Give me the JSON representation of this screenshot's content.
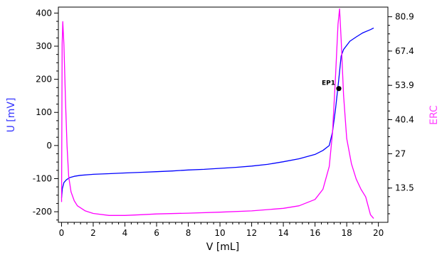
{
  "chart_data": {
    "type": "line",
    "xlabel": "V [mL]",
    "ylabel": "U [mV]",
    "y2label": "ERC",
    "xlim": [
      -0.2,
      20.6
    ],
    "ylim": [
      -232,
      418
    ],
    "y2lim": [
      0,
      84.7
    ],
    "x_ticks": [
      0,
      2,
      4,
      6,
      8,
      10,
      12,
      14,
      16,
      18,
      20
    ],
    "y_ticks": [
      -200,
      -100,
      0,
      100,
      200,
      300,
      400
    ],
    "y2_ticks": [
      "13.5",
      "27",
      "40.4",
      "53.9",
      "67.4",
      "80.9"
    ],
    "grid": false,
    "series": [
      {
        "name": "U [mV]",
        "axis": "left",
        "color": "#0000ff",
        "x": [
          0.0,
          0.05,
          0.15,
          0.3,
          0.5,
          0.8,
          1.2,
          2.0,
          3.0,
          4.0,
          5.0,
          6.0,
          7.0,
          8.0,
          9.0,
          10.0,
          11.0,
          12.0,
          13.0,
          14.0,
          15.0,
          16.0,
          16.5,
          16.9,
          17.1,
          17.3,
          17.5,
          17.65,
          17.8,
          18.2,
          18.6,
          19.0,
          19.5,
          19.7
        ],
        "y": [
          -158,
          -130,
          -112,
          -104,
          -97,
          -93,
          -90,
          -87,
          -85,
          -83,
          -81,
          -79,
          -77,
          -74,
          -72,
          -69,
          -66,
          -62,
          -57,
          -49,
          -40,
          -27,
          -15,
          0,
          40,
          112,
          200,
          270,
          290,
          315,
          328,
          340,
          350,
          355
        ]
      },
      {
        "name": "ERC",
        "axis": "right",
        "color": "#ff00ff",
        "x": [
          0.0,
          0.04,
          0.08,
          0.15,
          0.25,
          0.35,
          0.45,
          0.6,
          0.8,
          1.0,
          1.5,
          2.0,
          3.0,
          4.0,
          5.0,
          6.0,
          8.0,
          10.0,
          12.0,
          14.0,
          15.0,
          16.0,
          16.5,
          16.9,
          17.1,
          17.3,
          17.45,
          17.55,
          17.65,
          17.8,
          18.0,
          18.3,
          18.6,
          18.9,
          19.2,
          19.5,
          19.7
        ],
        "y": [
          8,
          70,
          79,
          70,
          48,
          30,
          18,
          12,
          8.5,
          6.5,
          4.5,
          3.5,
          2.7,
          2.7,
          3.0,
          3.3,
          3.6,
          4.0,
          4.5,
          5.5,
          6.5,
          9.0,
          13,
          22,
          35,
          58,
          78,
          84,
          72,
          50,
          33,
          23,
          17,
          13,
          10,
          3,
          1.5
        ]
      }
    ],
    "annotations": [
      {
        "text": "EP1",
        "x": 17.5,
        "y": 172
      }
    ]
  }
}
